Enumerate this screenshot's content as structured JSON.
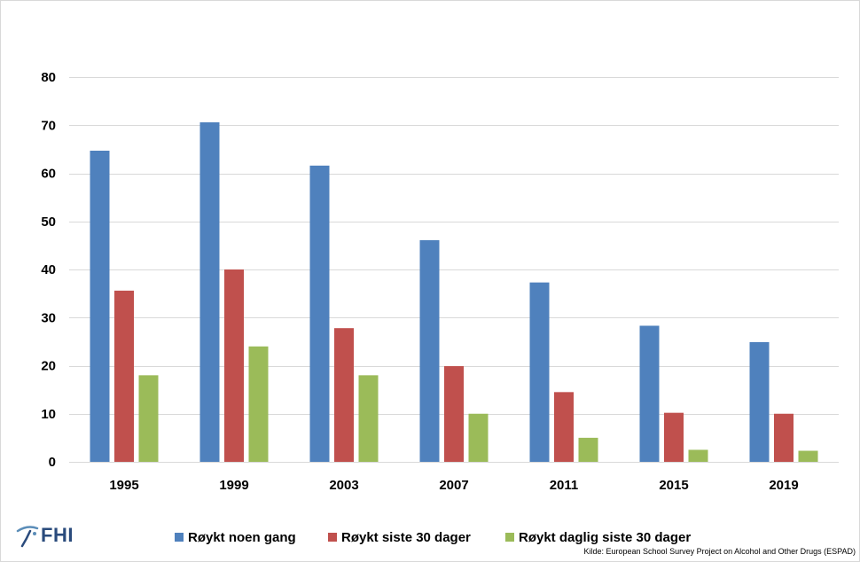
{
  "chart_data": {
    "type": "bar",
    "categories": [
      "1995",
      "1999",
      "2003",
      "2007",
      "2011",
      "2015",
      "2019"
    ],
    "series": [
      {
        "name": "Røykt noen gang",
        "color": "#4F81BD",
        "values": [
          64.7,
          70.6,
          61.6,
          46.1,
          37.3,
          28.3,
          24.9
        ]
      },
      {
        "name": "Røykt siste 30 dager",
        "color": "#C0504D",
        "values": [
          35.6,
          40.0,
          27.8,
          19.9,
          14.5,
          10.2,
          10.0
        ]
      },
      {
        "name": "Røykt daglig siste 30 dager",
        "color": "#9BBB59",
        "values": [
          18.0,
          24.0,
          18.0,
          10.0,
          5.0,
          2.5,
          2.3
        ]
      }
    ],
    "yticks": [
      0,
      10,
      20,
      30,
      40,
      50,
      60,
      70,
      80
    ],
    "ylim": [
      0,
      80
    ],
    "grid": true,
    "legend_position": "bottom"
  },
  "logo": {
    "text": "FHI",
    "icon": "fhi-swoosh-icon"
  },
  "source": "Kilde: European School Survey Project on Alcohol and Other Drugs (ESPAD)"
}
